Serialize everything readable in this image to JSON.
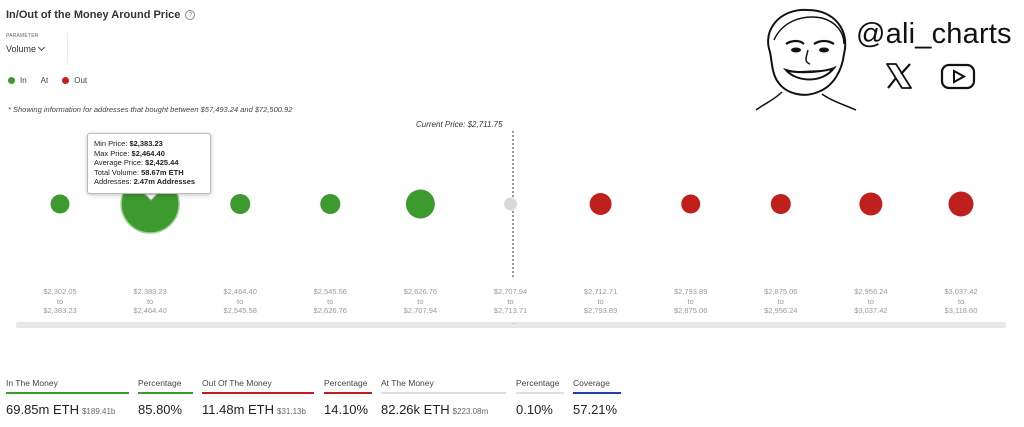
{
  "header": {
    "title": "In/Out of the Money Around Price",
    "help_icon": "question-circle-icon"
  },
  "parameter": {
    "label": "PARAMETER",
    "value": "Volume"
  },
  "legend": [
    {
      "label": "In",
      "color": "#3d9a2f"
    },
    {
      "label": "At",
      "color": "#d9d9d9"
    },
    {
      "label": "Out",
      "color": "#c0201d"
    }
  ],
  "note": "* Showing information for addresses that bought between $57,493.24 and $72,500.92",
  "branding": {
    "handle": "@ali_charts",
    "icons": [
      "face-sketch-icon",
      "x-logo-icon",
      "youtube-icon"
    ]
  },
  "chart_data": {
    "type": "scatter",
    "current_price_label": "Current Price: $2,711.75",
    "colors": {
      "In": "#3d9a2f",
      "At": "#d9d9d9",
      "Out": "#c0201d"
    },
    "buckets": [
      {
        "from": "$2,302.05",
        "to": "$2,383.23",
        "status": "In"
      },
      {
        "from": "$2,383.23",
        "to": "$2,464.40",
        "status": "In",
        "volume_eth": 58670000
      },
      {
        "from": "$2,464.40",
        "to": "$2,545.58",
        "status": "In"
      },
      {
        "from": "$2,545.56",
        "to": "$2,626.76",
        "status": "In"
      },
      {
        "from": "$2,626.76",
        "to": "$2,707.94",
        "status": "In"
      },
      {
        "from": "$2,707.94",
        "to": "$2,713.71",
        "status": "At"
      },
      {
        "from": "$2,712.71",
        "to": "$2,793.89",
        "status": "Out"
      },
      {
        "from": "$2,793.89",
        "to": "$2,875.06",
        "status": "Out"
      },
      {
        "from": "$2,875.06",
        "to": "$2,956.24",
        "status": "Out"
      },
      {
        "from": "$2,956.24",
        "to": "$3,037.42",
        "status": "Out"
      },
      {
        "from": "$3,037.42",
        "to": "$3,118.60",
        "status": "Out"
      }
    ],
    "connector_word": "to",
    "tooltip": {
      "min_label": "Min Price:",
      "min_value": "$2,383.23",
      "max_label": "Max Price:",
      "max_value": "$2,464.40",
      "avg_label": "Average Price:",
      "avg_value": "$2,425.44",
      "vol_label": "Total Volume:",
      "vol_value": "58.67m ETH",
      "addr_label": "Addresses:",
      "addr_value": "2.47m Addresses"
    }
  },
  "stats": [
    {
      "label": "In The Money",
      "value": "69.85m ETH",
      "sub": "$189.41b",
      "color": "#3d9a2f"
    },
    {
      "label": "Percentage",
      "value": "85.80%",
      "sub": "",
      "color": "#3d9a2f"
    },
    {
      "label": "Out Of The Money",
      "value": "11.48m ETH",
      "sub": "$31.13b",
      "color": "#c0201d"
    },
    {
      "label": "Percentage",
      "value": "14.10%",
      "sub": "",
      "color": "#c0201d"
    },
    {
      "label": "At The Money",
      "value": "82.26k ETH",
      "sub": "$223.08m",
      "color": "#d9d9d9"
    },
    {
      "label": "Percentage",
      "value": "0.10%",
      "sub": "",
      "color": "#d9d9d9"
    },
    {
      "label": "Coverage",
      "value": "57.21%",
      "sub": "",
      "color": "#1f3fb8"
    }
  ]
}
